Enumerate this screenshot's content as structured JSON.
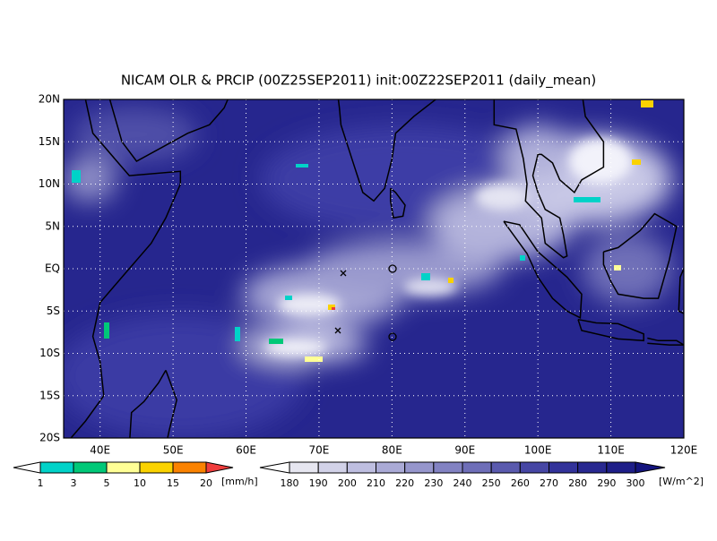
{
  "title": "NICAM OLR & PRCIP (00Z25SEP2011) init:00Z22SEP2011 (daily_mean)",
  "map": {
    "lat_labels": [
      "20N",
      "15N",
      "10N",
      "5N",
      "EQ",
      "5S",
      "10S",
      "15S",
      "20S"
    ],
    "lon_labels": [
      "40E",
      "50E",
      "60E",
      "70E",
      "80E",
      "90E",
      "100E",
      "110E",
      "120E"
    ]
  },
  "precip_legend": {
    "labels": [
      "1",
      "3",
      "5",
      "10",
      "15",
      "20"
    ],
    "unit": "[mm/h]",
    "colors": [
      "#ffffff",
      "#00d2c8",
      "#00c878",
      "#ffff96",
      "#fad200",
      "#fa8200",
      "#f03c3c"
    ]
  },
  "olr_legend": {
    "labels": [
      "180",
      "190",
      "200",
      "210",
      "220",
      "230",
      "240",
      "250",
      "260",
      "270",
      "280",
      "290",
      "300"
    ],
    "unit": "[W/m^2]",
    "colors": [
      "#ffffff",
      "#e6e6f0",
      "#d2d2e8",
      "#bebee0",
      "#aaaad6",
      "#9696cc",
      "#8282c2",
      "#6e6eb8",
      "#5a5aae",
      "#4646a4",
      "#32329a",
      "#282890",
      "#1e1e88",
      "#14147e"
    ]
  }
}
